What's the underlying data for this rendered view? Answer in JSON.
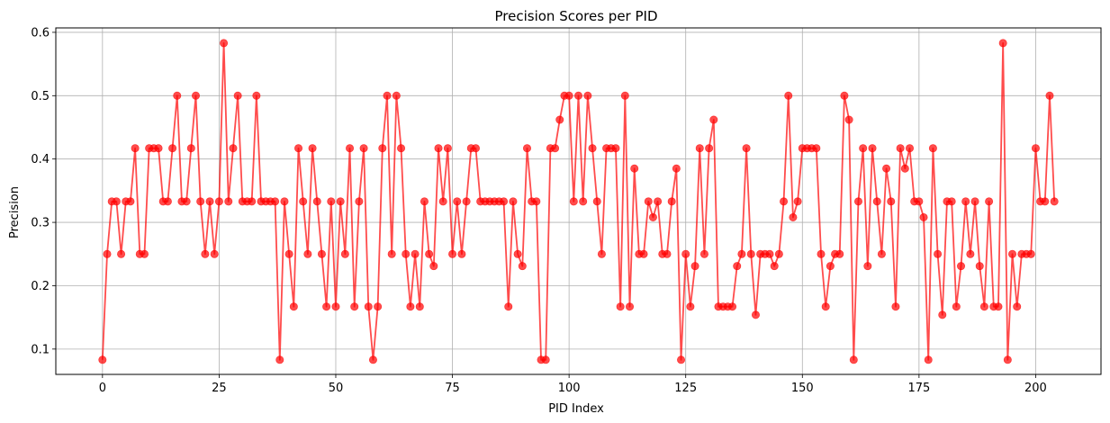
{
  "chart_data": {
    "type": "line",
    "title": "Precision Scores per PID",
    "xlabel": "PID Index",
    "ylabel": "Precision",
    "xlim": [
      -10,
      214
    ],
    "ylim": [
      0.06,
      0.607
    ],
    "xticks": [
      0,
      25,
      50,
      75,
      100,
      125,
      150,
      175,
      200
    ],
    "yticks": [
      0.1,
      0.2,
      0.3,
      0.4,
      0.5,
      0.6
    ],
    "grid": true,
    "color": "#ff0000",
    "series": [
      {
        "marker": "circle",
        "x": [
          0,
          1,
          2,
          3,
          4,
          5,
          6,
          7,
          8,
          9,
          10,
          11,
          12,
          13,
          14,
          15,
          16,
          17,
          18,
          19,
          20,
          21,
          22,
          23,
          24,
          25,
          26,
          27,
          28,
          29,
          30,
          31,
          32,
          33,
          34,
          35,
          36,
          37,
          38,
          39,
          40,
          41,
          42,
          43,
          44,
          45,
          46,
          47,
          48,
          49,
          50,
          51,
          52,
          53,
          54,
          55,
          56,
          57,
          58,
          59,
          60,
          61,
          62,
          63,
          64,
          65,
          66,
          67,
          68,
          69,
          70,
          71,
          72,
          73,
          74,
          75,
          76,
          77,
          78,
          79,
          80,
          81,
          82,
          83,
          84,
          85,
          86,
          87,
          88,
          89,
          90,
          91,
          92,
          93,
          94,
          95,
          96,
          97,
          98,
          99,
          100,
          101,
          102,
          103,
          104,
          105,
          106,
          107,
          108,
          109,
          110,
          111,
          112,
          113,
          114,
          115,
          116,
          117,
          118,
          119,
          120,
          121,
          122,
          123,
          124,
          125,
          126,
          127,
          128,
          129,
          130,
          131,
          132,
          133,
          134,
          135,
          136,
          137,
          138,
          139,
          140,
          141,
          142,
          143,
          144,
          145,
          146,
          147,
          148,
          149,
          150,
          151,
          152,
          153,
          154,
          155,
          156,
          157,
          158,
          159,
          160,
          161,
          162,
          163,
          164,
          165,
          166,
          167,
          168,
          169,
          170,
          171,
          172,
          173,
          174,
          175,
          176,
          177,
          178,
          179,
          180,
          181,
          182,
          183,
          184,
          185,
          186,
          187,
          188,
          189,
          190,
          191,
          192,
          193,
          194,
          195,
          196,
          197,
          198,
          199,
          200,
          201,
          202,
          203,
          204
        ],
        "values": [
          0.083,
          0.25,
          0.333,
          0.333,
          0.25,
          0.333,
          0.333,
          0.417,
          0.25,
          0.25,
          0.417,
          0.417,
          0.417,
          0.333,
          0.333,
          0.417,
          0.5,
          0.333,
          0.333,
          0.417,
          0.5,
          0.333,
          0.25,
          0.333,
          0.25,
          0.333,
          0.583,
          0.333,
          0.417,
          0.5,
          0.333,
          0.333,
          0.333,
          0.5,
          0.333,
          0.333,
          0.333,
          0.333,
          0.083,
          0.333,
          0.25,
          0.167,
          0.417,
          0.333,
          0.25,
          0.417,
          0.333,
          0.25,
          0.167,
          0.333,
          0.167,
          0.333,
          0.25,
          0.417,
          0.167,
          0.333,
          0.417,
          0.167,
          0.083,
          0.167,
          0.417,
          0.5,
          0.25,
          0.5,
          0.417,
          0.25,
          0.167,
          0.25,
          0.167,
          0.333,
          0.25,
          0.231,
          0.417,
          0.333,
          0.417,
          0.25,
          0.333,
          0.25,
          0.333,
          0.417,
          0.417,
          0.333,
          0.333,
          0.333,
          0.333,
          0.333,
          0.333,
          0.167,
          0.333,
          0.25,
          0.231,
          0.417,
          0.333,
          0.333,
          0.083,
          0.083,
          0.417,
          0.417,
          0.462,
          0.5,
          0.5,
          0.333,
          0.5,
          0.333,
          0.5,
          0.417,
          0.333,
          0.25,
          0.417,
          0.417,
          0.417,
          0.167,
          0.5,
          0.167,
          0.385,
          0.25,
          0.25,
          0.333,
          0.308,
          0.333,
          0.25,
          0.25,
          0.333,
          0.385,
          0.083,
          0.25,
          0.167,
          0.231,
          0.417,
          0.25,
          0.417,
          0.462,
          0.167,
          0.167,
          0.167,
          0.167,
          0.231,
          0.25,
          0.417,
          0.25,
          0.154,
          0.25,
          0.25,
          0.25,
          0.231,
          0.25,
          0.333,
          0.5,
          0.308,
          0.333,
          0.417,
          0.417,
          0.417,
          0.417,
          0.25,
          0.167,
          0.231,
          0.25,
          0.25,
          0.5,
          0.462,
          0.083,
          0.333,
          0.417,
          0.231,
          0.417,
          0.333,
          0.25,
          0.385,
          0.333,
          0.167,
          0.417,
          0.385,
          0.417,
          0.333,
          0.333,
          0.308,
          0.083,
          0.417,
          0.25,
          0.154,
          0.333,
          0.333,
          0.167,
          0.231,
          0.333,
          0.25,
          0.333,
          0.231,
          0.167,
          0.333,
          0.167,
          0.167,
          0.583,
          0.083,
          0.25,
          0.167,
          0.25,
          0.25,
          0.25,
          0.417,
          0.333,
          0.333,
          0.5,
          0.333
        ]
      }
    ]
  }
}
